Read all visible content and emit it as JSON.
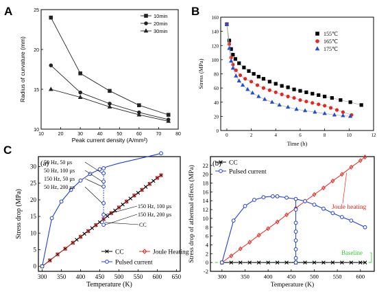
{
  "panel_labels": [
    "A",
    "B",
    "C"
  ],
  "chart_data": [
    {
      "id": "A",
      "type": "line",
      "xlabel": "Peak current density (A/mm²)",
      "ylabel": "Radius of curvature (mm)",
      "xlim": [
        10,
        80
      ],
      "ylim": [
        10,
        25
      ],
      "xticks": [
        10,
        20,
        30,
        40,
        50,
        60,
        70,
        80
      ],
      "yticks": [
        10,
        15,
        20,
        25
      ],
      "legend_position": "top-right",
      "series": [
        {
          "name": "10min",
          "marker": "square",
          "color": "#222222",
          "x": [
            15,
            30,
            45,
            60,
            75
          ],
          "y": [
            24.0,
            17.0,
            14.8,
            13.0,
            11.8
          ]
        },
        {
          "name": "20min",
          "marker": "circle",
          "color": "#222222",
          "x": [
            15,
            30,
            45,
            60,
            75
          ],
          "y": [
            18.0,
            14.6,
            13.2,
            12.1,
            11.2
          ]
        },
        {
          "name": "30min",
          "marker": "triangle",
          "color": "#222222",
          "x": [
            15,
            30,
            45,
            60,
            75
          ],
          "y": [
            15.0,
            14.0,
            12.8,
            11.8,
            11.0
          ]
        }
      ]
    },
    {
      "id": "B",
      "type": "scatter",
      "xlabel": "Time (h)",
      "ylabel": "Stress (MPa)",
      "xlim": [
        -0.5,
        12
      ],
      "ylim": [
        0,
        160
      ],
      "xticks": [
        0,
        2,
        4,
        6,
        8,
        10,
        12
      ],
      "yticks": [
        0,
        20,
        40,
        60,
        80,
        100,
        120,
        140,
        160
      ],
      "legend_position": "top-right",
      "series": [
        {
          "name": "155℃",
          "marker": "square",
          "color": "#000000",
          "x": [
            0,
            0.2,
            0.35,
            0.5,
            0.7,
            1.0,
            1.4,
            1.8,
            2.2,
            2.6,
            3.0,
            3.5,
            4.0,
            4.5,
            5.0,
            5.5,
            6.0,
            6.5,
            7.0,
            7.5,
            8.0,
            8.6,
            9.3,
            10.1,
            11.0
          ],
          "y": [
            150,
            127,
            115,
            107,
            101,
            95,
            89,
            84,
            80,
            76,
            73,
            69,
            66,
            63,
            61,
            58,
            56,
            54,
            52,
            50,
            48,
            46,
            43,
            40,
            36
          ]
        },
        {
          "name": "165℃",
          "marker": "circle",
          "color": "#e8261e",
          "x": [
            0,
            0.2,
            0.35,
            0.5,
            0.75,
            1.1,
            1.5,
            2.0,
            2.5,
            3.0,
            3.5,
            4.0,
            4.5,
            5.0,
            5.5,
            6.0,
            6.5,
            7.0,
            7.5,
            8.0,
            8.5,
            9.0,
            9.5,
            10.2
          ],
          "y": [
            150,
            122,
            103,
            93,
            85,
            78,
            73,
            69,
            64,
            60,
            57,
            54,
            51,
            48,
            46,
            43,
            41,
            39,
            37,
            35,
            32,
            29,
            26,
            22
          ]
        },
        {
          "name": "175℃",
          "marker": "triangle",
          "color": "#1f4fd6",
          "x": [
            0,
            0.2,
            0.35,
            0.5,
            0.75,
            1.0,
            1.3,
            1.7,
            2.1,
            2.6,
            3.1,
            3.7,
            4.3,
            5.0,
            5.7,
            6.4,
            7.2,
            8.0,
            8.8,
            9.5,
            10.1
          ],
          "y": [
            150,
            116,
            98,
            88,
            77,
            70,
            64,
            58,
            53,
            48,
            44,
            40,
            36,
            33,
            30,
            28,
            26,
            24,
            22,
            21,
            20
          ]
        }
      ]
    },
    {
      "id": "C(a)",
      "type": "line",
      "sub_label": "(a)",
      "xlabel": "Temperature (K)",
      "ylabel": "Stress drop (MPa)",
      "xlim": [
        290,
        660
      ],
      "ylim": [
        -1.5,
        33
      ],
      "xticks": [
        300,
        350,
        400,
        450,
        500,
        550,
        600,
        650
      ],
      "yticks": [
        0,
        5,
        10,
        15,
        20,
        25,
        30
      ],
      "legend_position": "bottom-right",
      "legend": [
        "CC",
        "Joule Heating",
        "Pulsed current"
      ],
      "series": [
        {
          "name": "CC",
          "marker": "x",
          "color": "#000000",
          "x": [
            300,
            320,
            340,
            360,
            380,
            390,
            400,
            410,
            420,
            430,
            440,
            450,
            460,
            470,
            480,
            490,
            500,
            510,
            520,
            530,
            540,
            550,
            560,
            570,
            580,
            590,
            600,
            610
          ],
          "y": [
            0,
            1.8,
            3.6,
            5.3,
            7.1,
            8.0,
            8.9,
            9.8,
            10.6,
            11.5,
            12.4,
            13.3,
            14.2,
            15.1,
            16.0,
            16.8,
            17.7,
            18.6,
            19.5,
            20.4,
            21.3,
            22.1,
            23.0,
            23.9,
            24.8,
            25.7,
            26.6,
            27.4
          ]
        },
        {
          "name": "Joule Heating",
          "marker": "diamond",
          "color": "#e8261e",
          "x": [
            300,
            320,
            340,
            360,
            380,
            400,
            420,
            440,
            460,
            480,
            500,
            520,
            540,
            560,
            580,
            600,
            610
          ],
          "y": [
            0,
            1.8,
            3.6,
            5.3,
            7.1,
            8.9,
            10.6,
            12.4,
            14.2,
            16.0,
            17.7,
            19.5,
            21.3,
            23.0,
            24.8,
            26.6,
            27.4
          ]
        },
        {
          "name": "Pulsed current",
          "marker": "circle",
          "color": "#1f3fd6",
          "x": [
            300,
            325,
            350,
            375,
            400,
            425,
            450,
            460,
            460,
            460,
            460,
            460,
            460,
            460,
            610
          ],
          "y": [
            0,
            14.5,
            19.5,
            23.0,
            25.8,
            27.8,
            29.2,
            29.5,
            28.0,
            25.5,
            24.0,
            19.0,
            15.5,
            12.5,
            34.0
          ]
        }
      ],
      "annotations": [
        "50 Hz, 50 µs",
        "50 Hz, 100 µs",
        "150 Hz, 50 µs",
        "50 Hz, 200 µs",
        "150 Hz, 100 µs",
        "150 Hz, 200 µs",
        "CC"
      ]
    },
    {
      "id": "C(b)",
      "type": "line",
      "sub_label": "(b)",
      "xlabel": "Temperature (K)",
      "ylabel": "Stress drop of athermal effects (MPa)",
      "xlim": [
        275,
        630
      ],
      "ylim": [
        -2,
        24
      ],
      "xticks": [
        300,
        350,
        400,
        450,
        500,
        550,
        600
      ],
      "yticks": [
        -2,
        0,
        2,
        4,
        6,
        8,
        10,
        12,
        14,
        16,
        18,
        20,
        22
      ],
      "legend_position": "top-left",
      "legend": [
        "CC",
        "Pulsed current"
      ],
      "series": [
        {
          "name": "CC",
          "marker": "x",
          "color": "#000000",
          "x": [
            300,
            320,
            340,
            360,
            380,
            400,
            420,
            440,
            460,
            480,
            500,
            520,
            540,
            560,
            580,
            600,
            610
          ],
          "y": [
            0,
            0,
            0,
            0,
            0,
            0,
            0,
            0,
            0,
            0,
            0,
            0,
            0,
            0,
            0,
            0,
            0
          ]
        },
        {
          "name": "Joule heating",
          "marker": "diamond",
          "color": "#e8261e",
          "x": [
            300,
            320,
            340,
            360,
            380,
            400,
            420,
            440,
            460,
            480,
            500,
            520,
            540,
            560,
            580,
            600,
            610
          ],
          "y": [
            0,
            1.5,
            3.1,
            4.6,
            6.2,
            7.7,
            9.2,
            10.8,
            12.3,
            13.9,
            15.4,
            16.9,
            18.5,
            20.0,
            21.6,
            23.1,
            23.9
          ]
        },
        {
          "name": "Pulsed current",
          "marker": "circle",
          "color": "#1f3fd6",
          "x": [
            300,
            325,
            350,
            370,
            390,
            410,
            420,
            440,
            460,
            480,
            500,
            520,
            540,
            560,
            580,
            610,
            460,
            460,
            460,
            460,
            460,
            460,
            460
          ],
          "y": [
            0,
            9.5,
            12.8,
            14.2,
            14.8,
            15.0,
            15.0,
            14.7,
            14.4,
            13.9,
            13.1,
            12.2,
            11.2,
            10.3,
            9.5,
            8.0,
            12.0,
            9.0,
            7.0,
            5.0,
            3.0,
            1.0,
            0
          ]
        }
      ],
      "annotations": [
        "Joule heating",
        "Baseline"
      ]
    }
  ]
}
